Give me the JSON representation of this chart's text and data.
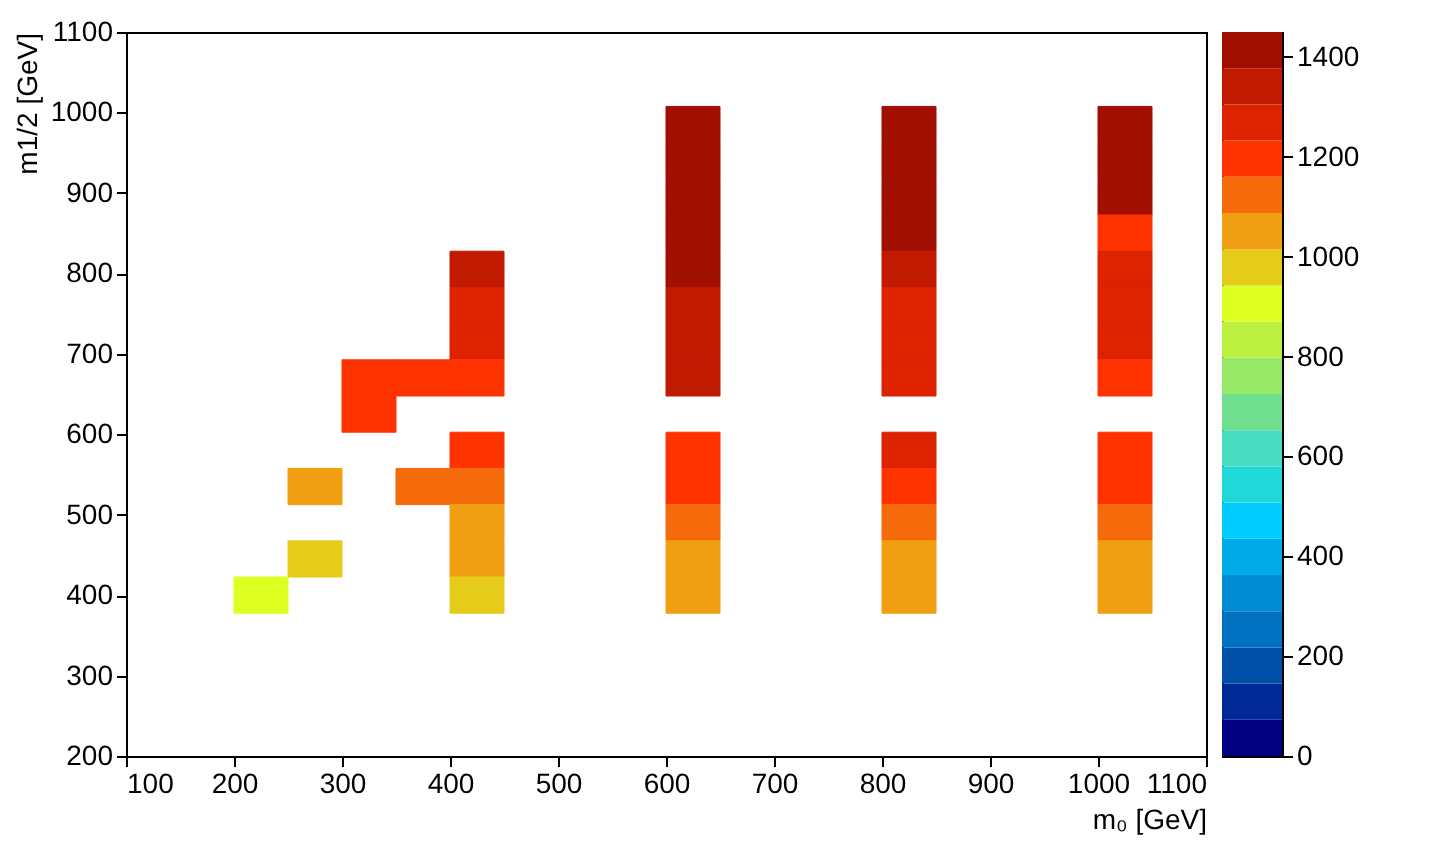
{
  "chart_data": {
    "type": "scatter",
    "marker": "square",
    "xlabel": "m₀ [GeV]",
    "ylabel": "m1/2 [GeV]",
    "x": [
      225,
      275,
      275,
      325,
      325,
      375,
      375,
      425,
      425,
      425,
      425,
      425,
      425,
      425,
      425,
      425,
      625,
      625,
      625,
      625,
      625,
      625,
      625,
      625,
      625,
      625,
      625,
      625,
      625,
      825,
      825,
      825,
      825,
      825,
      825,
      825,
      825,
      825,
      825,
      825,
      825,
      825,
      1025,
      1025,
      1025,
      1025,
      1025,
      1025,
      1025,
      1025,
      1025,
      1025,
      1025,
      1025,
      1025
    ],
    "values": [
      400,
      535,
      445,
      670,
      625,
      670,
      535,
      805,
      760,
      715,
      670,
      580,
      535,
      490,
      445,
      400,
      985,
      940,
      895,
      850,
      805,
      760,
      715,
      670,
      580,
      535,
      490,
      445,
      400,
      985,
      940,
      895,
      850,
      805,
      760,
      715,
      670,
      580,
      535,
      490,
      445,
      400,
      985,
      940,
      895,
      850,
      805,
      760,
      715,
      670,
      580,
      535,
      490,
      445,
      400
    ],
    "cvalues": [
      906,
      1051,
      978,
      1196,
      1196,
      1196,
      1123,
      1341,
      1268,
      1268,
      1196,
      1196,
      1123,
      1051,
      1051,
      978,
      1413,
      1413,
      1413,
      1413,
      1413,
      1341,
      1341,
      1341,
      1196,
      1196,
      1123,
      1051,
      1051,
      1413,
      1413,
      1413,
      1413,
      1341,
      1268,
      1268,
      1268,
      1268,
      1196,
      1123,
      1051,
      1051,
      1413,
      1413,
      1413,
      1196,
      1268,
      1268,
      1268,
      1196,
      1196,
      1196,
      1123,
      1051,
      1051
    ],
    "xlim": [
      100,
      1100
    ],
    "xticks": [
      100,
      200,
      300,
      400,
      500,
      600,
      700,
      800,
      900,
      1000,
      1100
    ],
    "ylim": [
      200,
      1100
    ],
    "yticks": [
      200,
      300,
      400,
      500,
      600,
      700,
      800,
      900,
      1000,
      1100
    ],
    "clim": [
      0,
      1450
    ],
    "cticks": [
      0,
      200,
      400,
      600,
      800,
      1000,
      1200,
      1400
    ],
    "grid": false
  }
}
